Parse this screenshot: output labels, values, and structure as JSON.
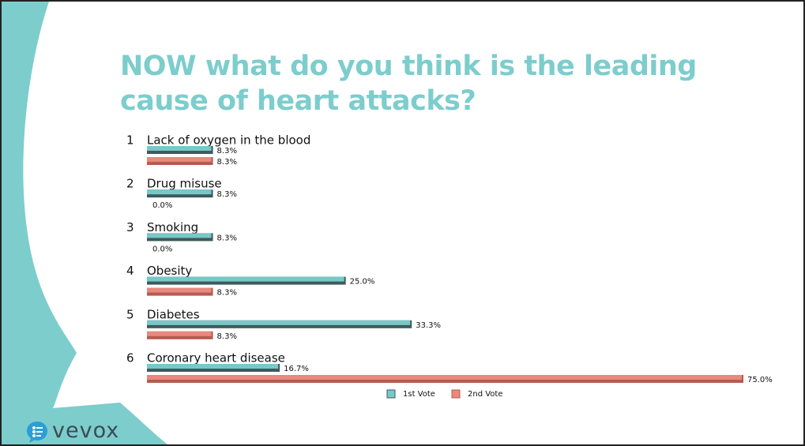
{
  "title": "NOW what do you think is the leading cause of heart attacks?",
  "brand": {
    "name": "vevox"
  },
  "colors": {
    "accent": "#7dcdcd",
    "series1_fill": "#78c8c8",
    "series1_shadow": "#3e5a5a",
    "series2_fill": "#e8897e",
    "series2_shadow": "#b65b51"
  },
  "chart_data": {
    "type": "bar",
    "orientation": "horizontal",
    "categories": [
      {
        "number": "1",
        "label": "Lack of oxygen in the blood"
      },
      {
        "number": "2",
        "label": "Drug misuse"
      },
      {
        "number": "3",
        "label": "Smoking"
      },
      {
        "number": "4",
        "label": "Obesity"
      },
      {
        "number": "5",
        "label": "Diabetes"
      },
      {
        "number": "6",
        "label": "Coronary heart disease"
      }
    ],
    "series": [
      {
        "name": "1st Vote",
        "values": [
          8.3,
          8.3,
          8.3,
          25.0,
          33.3,
          16.7
        ],
        "labels": [
          "8.3%",
          "8.3%",
          "8.3%",
          "25.0%",
          "33.3%",
          "16.7%"
        ]
      },
      {
        "name": "2nd Vote",
        "values": [
          8.3,
          0.0,
          0.0,
          8.3,
          8.3,
          75.0
        ],
        "labels": [
          "8.3%",
          "0.0%",
          "0.0%",
          "8.3%",
          "8.3%",
          "75.0%"
        ]
      }
    ],
    "xlim": [
      0,
      75
    ],
    "grid": false,
    "legend": "bottom"
  }
}
